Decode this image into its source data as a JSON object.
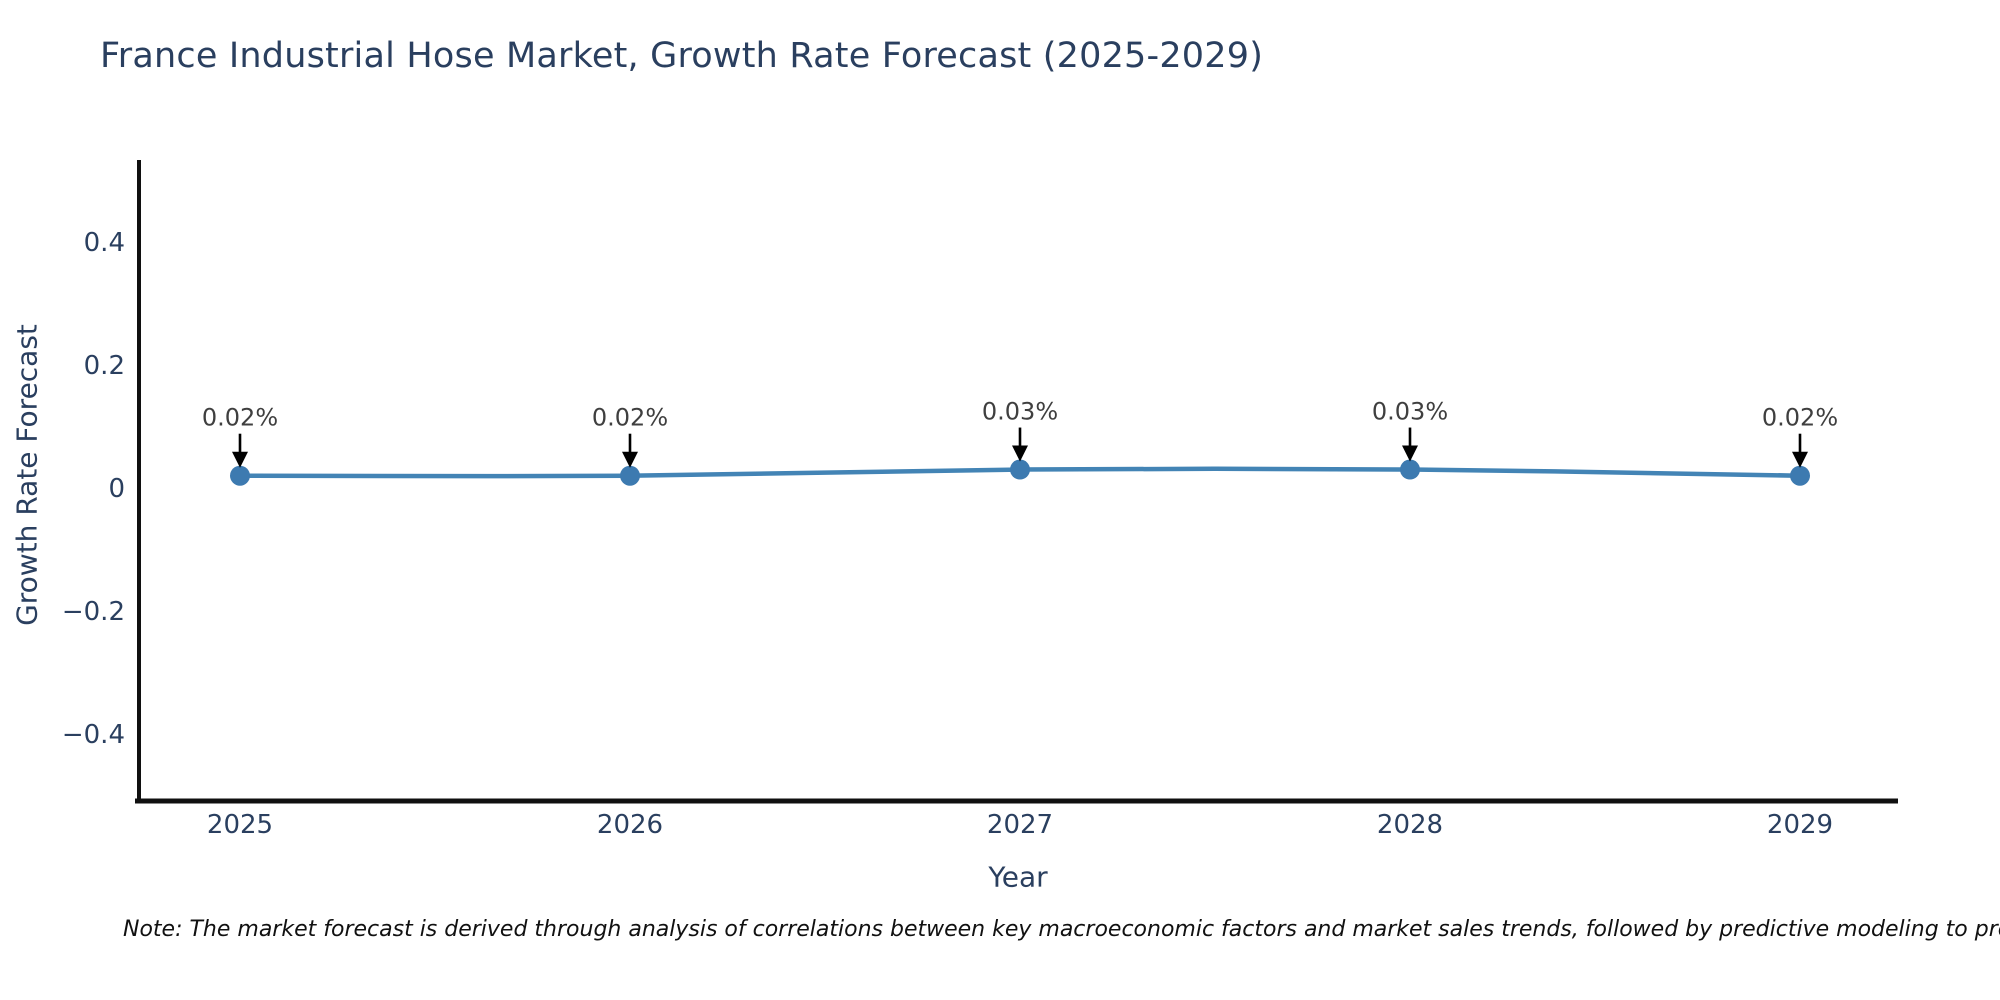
{
  "footnote": "Note: The market forecast is derived through analysis of correlations between key macroeconomic factors and market sales trends, followed by predictive modeling to project future sa",
  "chart_data": {
    "type": "line",
    "title": "France Industrial Hose Market, Growth Rate Forecast (2025-2029)",
    "xlabel": "Year",
    "ylabel": "Growth Rate Forecast",
    "x": [
      2025,
      2026,
      2027,
      2028,
      2029
    ],
    "series": [
      {
        "name": "Growth Rate Forecast",
        "values": [
          0.02,
          0.02,
          0.03,
          0.03,
          0.02
        ],
        "point_labels": [
          "0.02%",
          "0.02%",
          "0.03%",
          "0.03%",
          "0.02%"
        ]
      }
    ],
    "ylim": [
      -0.51,
      0.53
    ],
    "xlim": [
      2024.74,
      2029.25
    ],
    "yticks": {
      "values": [
        0.4,
        0.2,
        0,
        -0.2,
        -0.4
      ],
      "labels": [
        "0.4",
        "0.2",
        "0",
        "−0.2",
        "−0.4"
      ]
    },
    "xticks": {
      "values": [
        2025,
        2026,
        2027,
        2028,
        2029
      ],
      "labels": [
        "2025",
        "2026",
        "2027",
        "2028",
        "2029"
      ]
    },
    "grid": false,
    "legend": "none",
    "line_shape": "spline",
    "annotations_have_down_arrows": true,
    "colors": {
      "line": "#4384b5",
      "marker": "#3d7ab0",
      "axis": "#101010",
      "tick_text": "#2a3f5f",
      "annotation_text": "#3f3f3f",
      "arrow": "#000000",
      "background": "#ffffff"
    }
  }
}
